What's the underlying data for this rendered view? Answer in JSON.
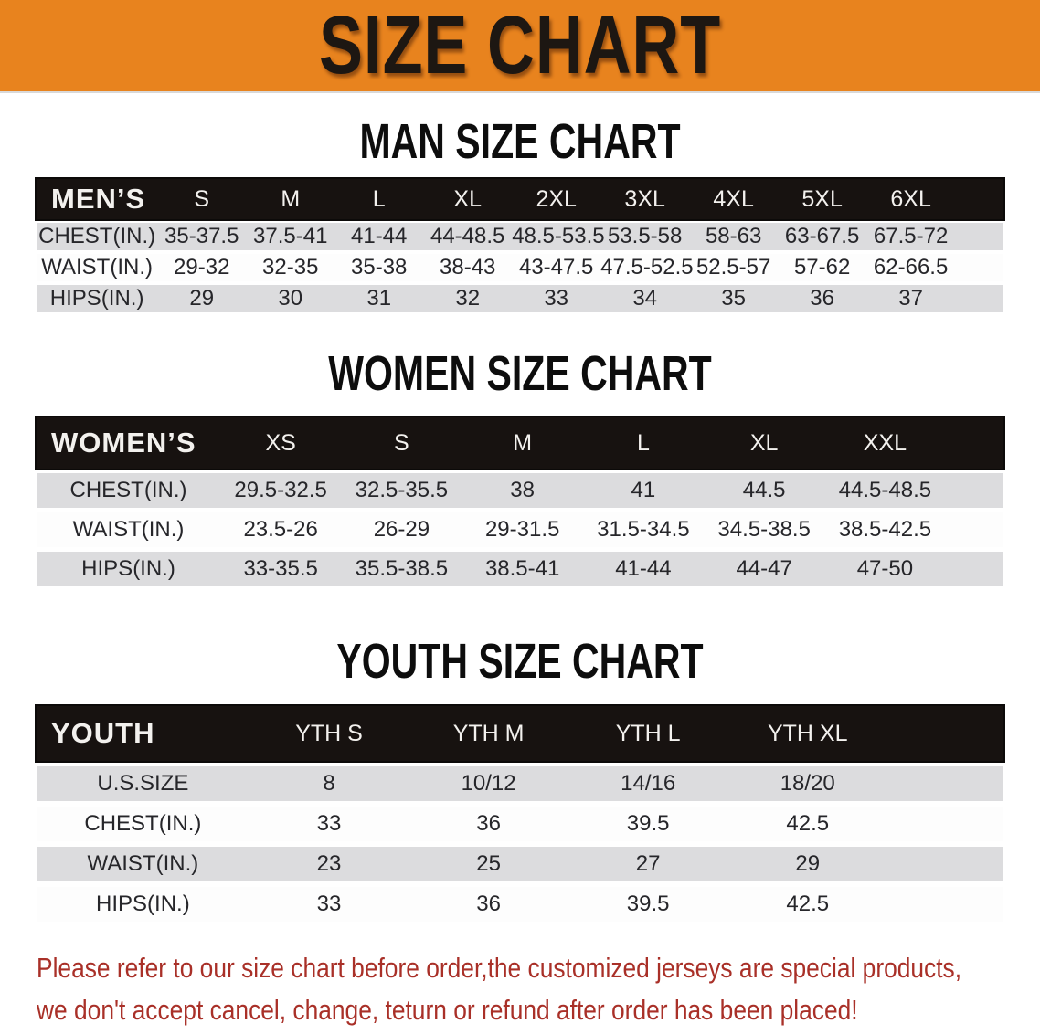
{
  "banner": {
    "title": "SIZE CHART"
  },
  "colors": {
    "banner_bg": "#E8831E",
    "banner_text": "#1D1712",
    "heading_text": "#0D0D0D",
    "header_bar_bg": "#171210",
    "header_bar_text": "#F3F1EE",
    "row_alt_bg": "#DCDCDE",
    "row_bg": "#FDFDFD",
    "cell_text": "#26262A",
    "note_text": "#A93028"
  },
  "sections": [
    {
      "heading": "MAN SIZE CHART",
      "table": {
        "label": "MEN’S",
        "columns": [
          "S",
          "M",
          "L",
          "XL",
          "2XL",
          "3XL",
          "4XL",
          "5XL",
          "6XL"
        ],
        "rows": [
          {
            "label": "CHEST(IN.)",
            "values": [
              "35-37.5",
              "37.5-41",
              "41-44",
              "44-48.5",
              "48.5-53.5",
              "53.5-58",
              "58-63",
              "63-67.5",
              "67.5-72"
            ]
          },
          {
            "label": "WAIST(IN.)",
            "values": [
              "29-32",
              "32-35",
              "35-38",
              "38-43",
              "43-47.5",
              "47.5-52.5",
              "52.5-57",
              "57-62",
              "62-66.5"
            ]
          },
          {
            "label": "HIPS(IN.)",
            "values": [
              "29",
              "30",
              "31",
              "32",
              "33",
              "34",
              "35",
              "36",
              "37"
            ]
          }
        ]
      }
    },
    {
      "heading": "WOMEN SIZE CHART",
      "table": {
        "label": "WOMEN’S",
        "columns": [
          "XS",
          "S",
          "M",
          "L",
          "XL",
          "XXL"
        ],
        "rows": [
          {
            "label": "CHEST(IN.)",
            "values": [
              "29.5-32.5",
              "32.5-35.5",
              "38",
              "41",
              "44.5",
              "44.5-48.5"
            ]
          },
          {
            "label": "WAIST(IN.)",
            "values": [
              "23.5-26",
              "26-29",
              "29-31.5",
              "31.5-34.5",
              "34.5-38.5",
              "38.5-42.5"
            ]
          },
          {
            "label": "HIPS(IN.)",
            "values": [
              "33-35.5",
              "35.5-38.5",
              "38.5-41",
              "41-44",
              "44-47",
              "47-50"
            ]
          }
        ]
      }
    },
    {
      "heading": "YOUTH SIZE CHART",
      "table": {
        "label": "YOUTH",
        "columns": [
          "YTH S",
          "YTH M",
          "YTH L",
          "YTH XL"
        ],
        "rows": [
          {
            "label": "U.S.SIZE",
            "values": [
              "8",
              "10/12",
              "14/16",
              "18/20"
            ]
          },
          {
            "label": "CHEST(IN.)",
            "values": [
              "33",
              "36",
              "39.5",
              "42.5"
            ]
          },
          {
            "label": "WAIST(IN.)",
            "values": [
              "23",
              "25",
              "27",
              "29"
            ]
          },
          {
            "label": "HIPS(IN.)",
            "values": [
              "33",
              "36",
              "39.5",
              "42.5"
            ]
          }
        ]
      }
    }
  ],
  "note": {
    "line1": "Please refer to our size chart before order,the customized jerseys are special products,",
    "line2": "we don't accept cancel, change, teturn or refund after order has been placed!"
  }
}
